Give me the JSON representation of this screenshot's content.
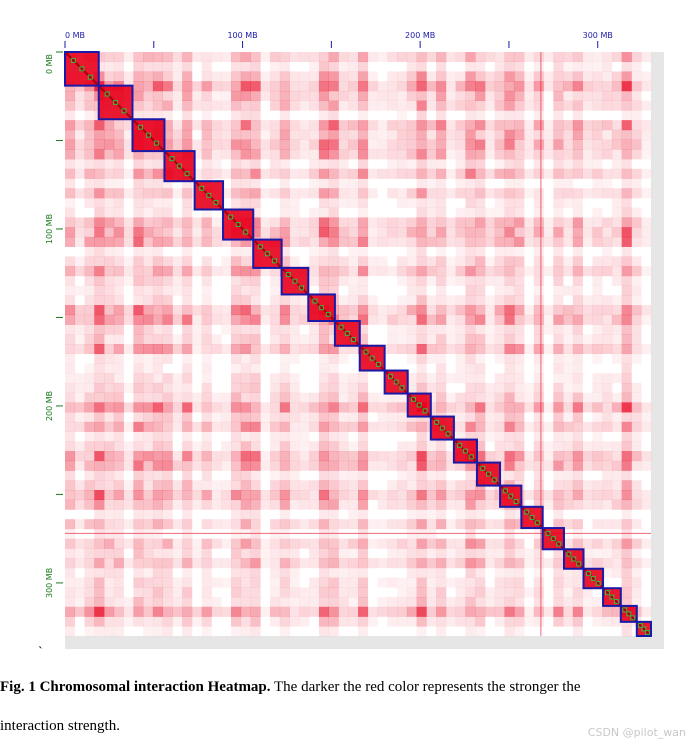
{
  "chart_data": {
    "type": "heatmap",
    "title": "Chromosomal interaction Heatmap",
    "x_axis": {
      "position": "top",
      "unit": "MB",
      "range": [
        0,
        330
      ],
      "ticks": [
        0,
        50,
        100,
        150,
        200,
        250,
        300
      ],
      "tick_labels": [
        "0 MB",
        "",
        "100 MB",
        "",
        "200 MB",
        "",
        "300 MB"
      ]
    },
    "y_axis": {
      "position": "left",
      "unit": "MB",
      "range": [
        0,
        330
      ],
      "ticks": [
        0,
        50,
        100,
        150,
        200,
        250,
        300
      ],
      "tick_labels": [
        "0 MB",
        "",
        "100 MB",
        "",
        "200 MB",
        "",
        "300 MB"
      ]
    },
    "color_scale": {
      "low": "#ffffff",
      "high": "#e8001c",
      "meaning": "darker red = stronger interaction"
    },
    "block_outline_color": "#1a1aa8",
    "diagonal_blocks_mb": [
      [
        0,
        19
      ],
      [
        19,
        38
      ],
      [
        38,
        56
      ],
      [
        56,
        73
      ],
      [
        73,
        89
      ],
      [
        89,
        106
      ],
      [
        106,
        122
      ],
      [
        122,
        137
      ],
      [
        137,
        152
      ],
      [
        152,
        166
      ],
      [
        166,
        180
      ],
      [
        180,
        193
      ],
      [
        193,
        206
      ],
      [
        206,
        219
      ],
      [
        219,
        232
      ],
      [
        232,
        245
      ],
      [
        245,
        257
      ],
      [
        257,
        269
      ],
      [
        269,
        281
      ],
      [
        281,
        292
      ],
      [
        292,
        303
      ],
      [
        303,
        313
      ],
      [
        313,
        322
      ],
      [
        322,
        330
      ]
    ]
  },
  "caption": {
    "label": "Fig. 1 Chromosomal interaction Heatmap.",
    "text_line1": " The darker the red color represents the stronger the",
    "text_line2": "interaction strength."
  },
  "stray_mark": "`",
  "watermark": "CSDN @pilot_wan"
}
